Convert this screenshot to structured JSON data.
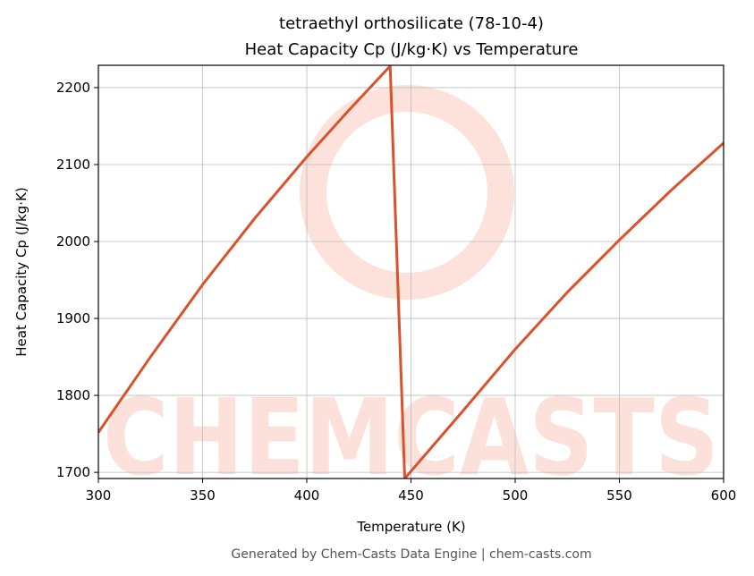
{
  "chart_data": {
    "type": "line",
    "title": "tetraethyl orthosilicate (78-10-4)",
    "subtitle": "Heat Capacity Cp (J/kg·K) vs Temperature",
    "x_label": "Temperature (K)",
    "y_label": "Heat Capacity Cp (J/kg·K)",
    "footer": "Generated by Chem-Casts Data Engine | chem-casts.com",
    "watermark": "CHEMCASTS",
    "x": [
      300,
      325,
      350,
      375,
      400,
      420,
      440,
      447,
      475,
      500,
      525,
      550,
      575,
      600
    ],
    "values": [
      1752,
      1850,
      1944,
      2030,
      2110,
      2170,
      2228,
      1692,
      1780,
      1860,
      1934,
      2002,
      2067,
      2128
    ],
    "color": "#d9522b",
    "xlim": [
      300,
      600
    ],
    "xticks": [
      300,
      350,
      400,
      450,
      500,
      550,
      600
    ],
    "ylim": [
      1692,
      2229
    ],
    "yticks": [
      1700,
      1800,
      1900,
      2000,
      2100,
      2200
    ],
    "grid": true
  }
}
